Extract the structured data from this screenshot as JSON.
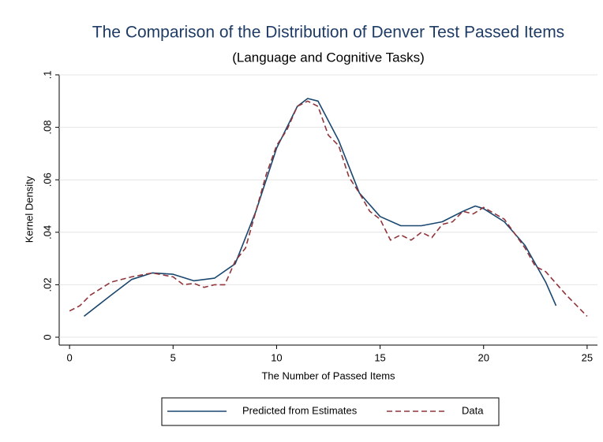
{
  "chart_data": {
    "type": "line",
    "title": "The Comparison of the Distribution of Denver Test Passed Items",
    "subtitle": "(Language and Cognitive Tasks)",
    "x_label": "The Number of Passed Items",
    "y_label": "Kernel Density",
    "xlim": [
      -0.5,
      25.5
    ],
    "xticks": [
      0,
      5,
      10,
      15,
      20,
      25
    ],
    "ylim": [
      -0.003,
      0.1
    ],
    "yticks": [
      0,
      {
        "value": 0.02,
        "label": ".02"
      },
      {
        "value": 0.04,
        "label": ".04"
      },
      {
        "value": 0.06,
        "label": ".06"
      },
      {
        "value": 0.08,
        "label": ".08"
      },
      {
        "value": 0.1,
        "label": ".1"
      }
    ],
    "grid": true,
    "legend": "bottom",
    "series": [
      {
        "name": "Predicted from Estimates",
        "color": "#1a476f",
        "dash": "solid",
        "x": [
          0.7,
          2,
          3,
          4,
          5,
          6,
          7,
          8,
          9,
          10,
          11,
          11.5,
          12,
          13,
          14,
          15,
          16,
          17,
          18,
          19,
          19.6,
          20,
          21,
          22,
          23,
          23.5
        ],
        "values": [
          0.008,
          0.016,
          0.022,
          0.0245,
          0.024,
          0.0215,
          0.0225,
          0.028,
          0.048,
          0.072,
          0.088,
          0.091,
          0.09,
          0.075,
          0.055,
          0.046,
          0.0425,
          0.0425,
          0.044,
          0.048,
          0.05,
          0.049,
          0.044,
          0.035,
          0.021,
          0.012
        ]
      },
      {
        "name": "Data",
        "color": "#90353b",
        "dash": "dashed",
        "x": [
          0,
          0.5,
          1,
          2,
          3,
          4,
          5,
          5.5,
          6,
          6.5,
          7,
          7.5,
          8,
          8.5,
          9,
          9.5,
          10,
          10.5,
          11,
          11.5,
          12,
          12.5,
          13,
          13.5,
          14,
          14.5,
          15,
          15.5,
          16,
          16.5,
          17,
          17.5,
          18,
          18.5,
          19,
          19.5,
          20,
          21,
          22,
          22.5,
          23,
          24,
          25
        ],
        "values": [
          0.01,
          0.012,
          0.016,
          0.021,
          0.023,
          0.0245,
          0.023,
          0.02,
          0.0205,
          0.019,
          0.02,
          0.02,
          0.029,
          0.034,
          0.048,
          0.062,
          0.073,
          0.079,
          0.088,
          0.09,
          0.088,
          0.077,
          0.073,
          0.061,
          0.055,
          0.048,
          0.045,
          0.037,
          0.039,
          0.037,
          0.04,
          0.038,
          0.043,
          0.044,
          0.048,
          0.047,
          0.0495,
          0.045,
          0.034,
          0.027,
          0.025,
          0.016,
          0.008
        ]
      }
    ]
  }
}
